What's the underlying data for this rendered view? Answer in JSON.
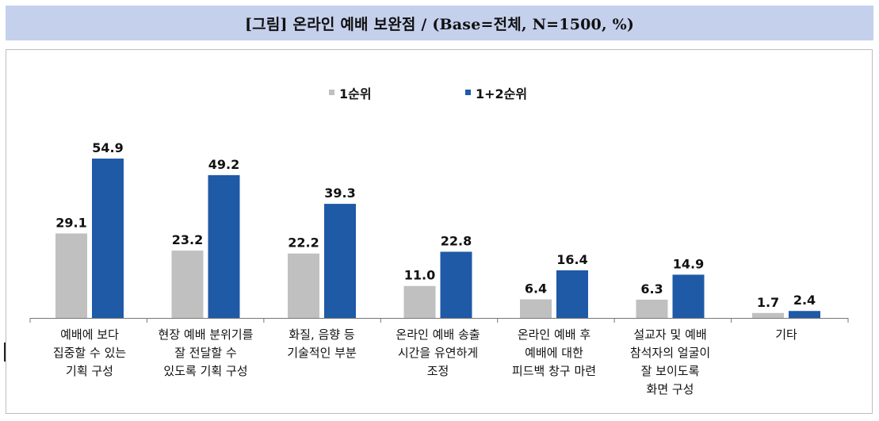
{
  "header": {
    "title": "[그림] 온라인 예배 보완점 / (Base=전체, N=1500, %)"
  },
  "colors": {
    "series1": "#c0c0c0",
    "series2": "#1f5aa6",
    "header_bg": "#c5d0ec"
  },
  "chart_data": {
    "type": "bar",
    "title": "[그림] 온라인 예배 보완점 / (Base=전체, N=1500, %)",
    "legend_position": "top-center",
    "grid": false,
    "ylim": [
      0,
      60
    ],
    "categories": [
      "예배에 보다 집중할 수 있는 기획 구성",
      "현장 예배 분위기를 잘 전달할 수 있도록 기획 구성",
      "화질, 음향 등 기술적인 부분",
      "온라인 예배 송출 시간을 유연하게 조정",
      "온라인 예배 후 예배에 대한 피드백 창구 마련",
      "설교자 및 예배 참석자의 얼굴이 잘 보이도록 화면 구성",
      "기타"
    ],
    "category_lines": [
      [
        "예배에 보다",
        "집중할 수 있는",
        "기획 구성"
      ],
      [
        "현장 예배 분위기를",
        "잘 전달할 수",
        "있도록 기획 구성"
      ],
      [
        "화질, 음향 등",
        "기술적인 부분"
      ],
      [
        "온라인 예배 송출",
        "시간을 유연하게",
        "조정"
      ],
      [
        "온라인 예배 후",
        "예배에 대한",
        "피드백 창구 마련"
      ],
      [
        "설교자 및 예배",
        "참석자의 얼굴이",
        "잘 보이도록",
        "화면 구성"
      ],
      [
        "기타"
      ]
    ],
    "series": [
      {
        "name": "1순위",
        "values": [
          29.1,
          23.2,
          22.2,
          11.0,
          6.4,
          6.3,
          1.7
        ],
        "labels": [
          "29.1",
          "23.2",
          "22.2",
          "11.0",
          "6.4",
          "6.3",
          "1.7"
        ]
      },
      {
        "name": "1+2순위",
        "values": [
          54.9,
          49.2,
          39.3,
          22.8,
          16.4,
          14.9,
          2.4
        ],
        "labels": [
          "54.9",
          "49.2",
          "39.3",
          "22.8",
          "16.4",
          "14.9",
          "2.4"
        ]
      }
    ]
  }
}
